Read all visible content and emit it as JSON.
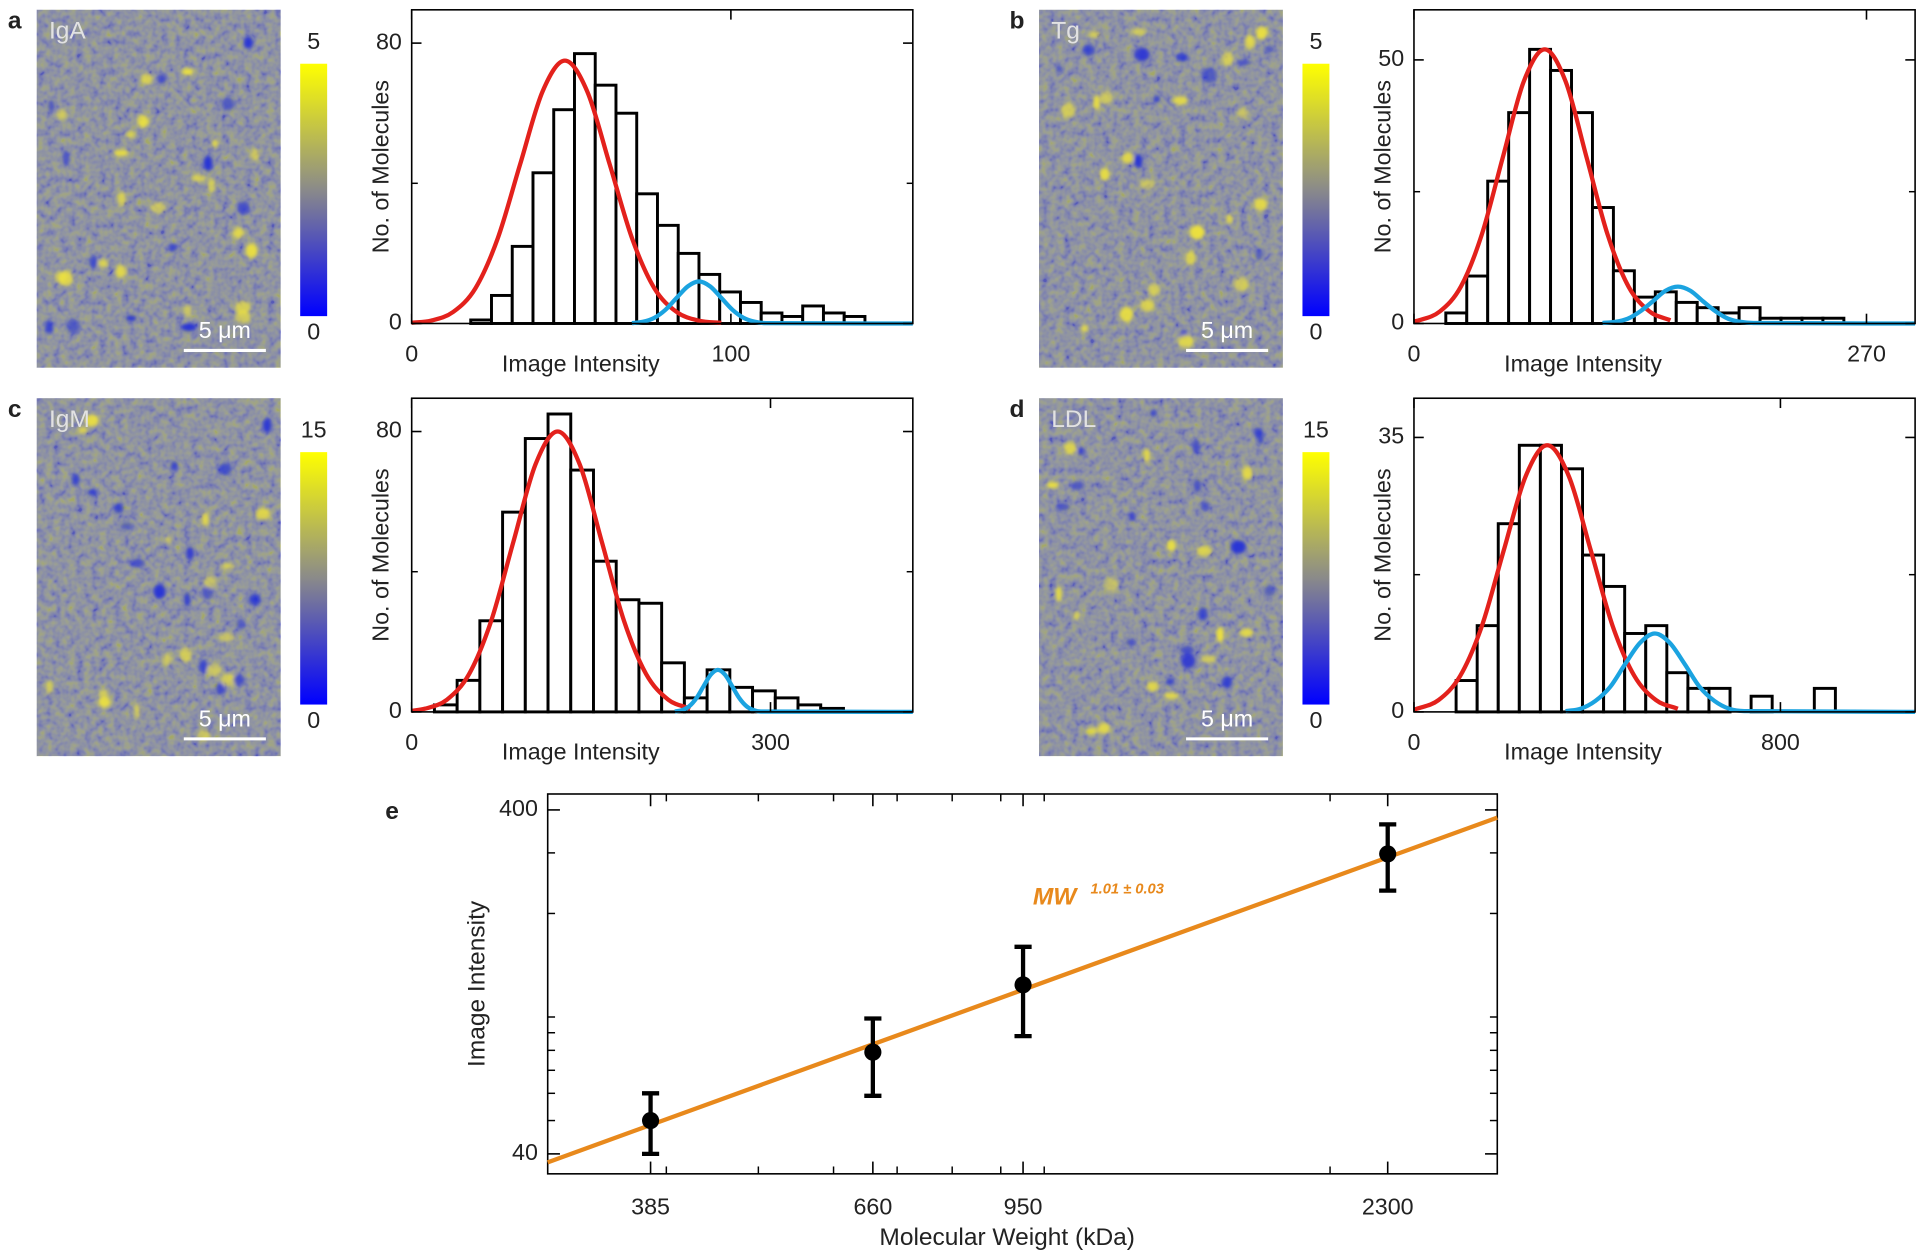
{
  "chart_data": [
    {
      "type": "histogram",
      "panel": "a",
      "image_label": "IgA",
      "scale_bar": "5 μm",
      "colorbar_ticks": [
        0,
        5
      ],
      "xlabel": "Image Intensity",
      "ylabel": "No. of Molecules",
      "bins": [
        18.5,
        25,
        31.5,
        38,
        44.5,
        51,
        57.5,
        64,
        70.5,
        77,
        83.5,
        90,
        96.5,
        103,
        109.5,
        116,
        122.5,
        129,
        135.5,
        142
      ],
      "counts": [
        1,
        8,
        22,
        43,
        61,
        77,
        68,
        60,
        37,
        28,
        20,
        14,
        9,
        6,
        3,
        2,
        5,
        3,
        2
      ],
      "color": "#000000",
      "series": [
        {
          "color": "#e3211c",
          "x": [
            0,
            6,
            13,
            20,
            27,
            34,
            41,
            48,
            55,
            62,
            69,
            76,
            83,
            90,
            97
          ],
          "values": [
            0.2,
            0.8,
            3.3,
            10.1,
            24.4,
            45.5,
            66.2,
            75,
            66.2,
            45.5,
            24.4,
            10.1,
            3.3,
            0.8,
            0.2
          ]
        },
        {
          "color": "#1ba3e0",
          "x": [
            69,
            72.5,
            76,
            79.5,
            83,
            86.5,
            90,
            93.5,
            97,
            100.5,
            104,
            107.5,
            111,
            157
          ],
          "values": [
            0.1,
            0.5,
            1.6,
            3.9,
            7.3,
            10.6,
            12,
            10.6,
            7.3,
            3.9,
            1.6,
            0.5,
            0.1,
            0
          ]
        }
      ],
      "xlim": [
        0,
        157
      ],
      "ylim": [
        0,
        89.5
      ],
      "xticks": [
        0,
        100
      ],
      "yticks": [
        0,
        80
      ],
      "yminor": [
        40
      ]
    },
    {
      "type": "histogram",
      "panel": "b",
      "image_label": "Tg",
      "scale_bar": "5 μm",
      "colorbar_ticks": [
        0,
        5
      ],
      "xlabel": "Image Intensity",
      "ylabel": "No. of Molecules",
      "bins": [
        19,
        31.5,
        44,
        56.5,
        69,
        81.5,
        94,
        106.5,
        119,
        131.5,
        144,
        156.5,
        169,
        181.5,
        194,
        206.5,
        219,
        231.5,
        244,
        256.5
      ],
      "counts": [
        2,
        9,
        27,
        40,
        52,
        48,
        40,
        22,
        10,
        5,
        6,
        4,
        3,
        2,
        3,
        1,
        1,
        1,
        1
      ],
      "color": "#000000",
      "series": [
        {
          "color": "#e3211c",
          "x": [
            0,
            3,
            15.5,
            28,
            40.5,
            53,
            65.5,
            78,
            90.5,
            103,
            115.5,
            128,
            140.5,
            153
          ],
          "values": [
            0.4,
            0.6,
            2.3,
            7.0,
            16.9,
            31.5,
            45.9,
            52,
            45.9,
            31.5,
            16.9,
            7.0,
            2.3,
            0.6
          ]
        },
        {
          "color": "#1ba3e0",
          "x": [
            112.5,
            120,
            127.5,
            135,
            142.5,
            150,
            157.5,
            165,
            172.5,
            180,
            187.5,
            195,
            202.5,
            299
          ],
          "values": [
            0.1,
            0.3,
            0.9,
            2.3,
            4.2,
            6.2,
            7,
            6.2,
            4.2,
            2.3,
            0.9,
            0.3,
            0.1,
            0
          ]
        }
      ],
      "xlim": [
        0,
        299
      ],
      "ylim": [
        0,
        59.5
      ],
      "xticks": [
        0,
        270
      ],
      "yticks": [
        0,
        50
      ],
      "yminor": [
        25
      ]
    },
    {
      "type": "histogram",
      "panel": "c",
      "image_label": "IgM",
      "scale_bar": "5 μm",
      "colorbar_ticks": [
        0,
        15
      ],
      "xlabel": "Image Intensity",
      "ylabel": "No. of Molecules",
      "bins": [
        19,
        38,
        57,
        76,
        95,
        114,
        133,
        152,
        171,
        190,
        209,
        228,
        247,
        266,
        285,
        304,
        323,
        342,
        361
      ],
      "counts": [
        2,
        9,
        26,
        57,
        78,
        85,
        69,
        43,
        32,
        31,
        14,
        4,
        12,
        7,
        6,
        4,
        2,
        1
      ],
      "color": "#000000",
      "series": [
        {
          "color": "#e3211c",
          "x": [
            0,
            11,
            29.5,
            48,
            66.5,
            85,
            103.5,
            122,
            140.5,
            159,
            177.5,
            196,
            214.5,
            233
          ],
          "values": [
            0.3,
            0.9,
            3.5,
            10.8,
            26.0,
            48.5,
            70.6,
            80,
            70.6,
            48.5,
            26.0,
            10.8,
            3.5,
            0.9
          ]
        },
        {
          "color": "#1ba3e0",
          "x": [
            220,
            226,
            232,
            238,
            244,
            250,
            256,
            262,
            268,
            274,
            280,
            286,
            292,
            419
          ],
          "values": [
            0.1,
            0.5,
            1.6,
            3.9,
            7.3,
            10.6,
            12,
            10.6,
            7.3,
            3.9,
            1.6,
            0.5,
            0.1,
            0
          ]
        }
      ],
      "xlim": [
        0,
        419
      ],
      "ylim": [
        0,
        89.5
      ],
      "xticks": [
        0,
        300
      ],
      "yticks": [
        0,
        80
      ],
      "yminor": [
        40
      ]
    },
    {
      "type": "histogram",
      "panel": "d",
      "image_label": "LDL",
      "scale_bar": "5 μm",
      "colorbar_ticks": [
        0,
        15
      ],
      "xlabel": "Image Intensity",
      "ylabel": "No. of Molecules",
      "bins": [
        92,
        138,
        184,
        230,
        276,
        322,
        368,
        414,
        460,
        506,
        552,
        598,
        644,
        690,
        736,
        782,
        828,
        874,
        920
      ],
      "counts": [
        4,
        11,
        24,
        34,
        34,
        31,
        20,
        16,
        10,
        11,
        5,
        3,
        3,
        0,
        2,
        0,
        0,
        3
      ],
      "color": "#000000",
      "series": [
        {
          "color": "#e3211c",
          "x": [
            0,
            6,
            53.5,
            101,
            148.5,
            196,
            243.5,
            291,
            338.5,
            386,
            433.5,
            481,
            528.5,
            576
          ],
          "values": [
            0.3,
            0.4,
            1.5,
            4.6,
            11.0,
            20.6,
            30.0,
            34,
            30.0,
            20.6,
            11.0,
            4.6,
            1.5,
            0.4
          ]
        },
        {
          "color": "#1ba3e0",
          "x": [
            331,
            363.5,
            396,
            428.5,
            461,
            493.5,
            526,
            558.5,
            591,
            623.5,
            656,
            688.5,
            721,
            1094
          ],
          "values": [
            0.1,
            0.4,
            1.4,
            3.2,
            6.1,
            8.8,
            10,
            8.8,
            6.1,
            3.2,
            1.4,
            0.4,
            0.1,
            0
          ]
        }
      ],
      "xlim": [
        0,
        1094
      ],
      "ylim": [
        0,
        40
      ],
      "xticks": [
        0,
        800
      ],
      "yticks": [
        0,
        35
      ],
      "yminor": [
        17.5
      ]
    },
    {
      "type": "scatter",
      "panel": "e",
      "xlabel": "Molecular Weight (kDa)",
      "ylabel": "Image Intensity",
      "x": [
        385,
        660,
        950,
        2300
      ],
      "values": [
        50,
        79,
        124,
        298
      ],
      "errors": [
        10,
        20,
        36,
        65
      ],
      "color": "#000000",
      "fit": {
        "color": "#e8891c",
        "x": [
          300,
          3000
        ],
        "values": [
          37.8,
          380
        ]
      },
      "annotation": "MW",
      "annotation_exponent": "1.01 ± 0.03",
      "xscale": "log",
      "yscale": "log",
      "xlim": [
        300,
        3000
      ],
      "ylim": [
        35,
        445
      ],
      "xticks": [
        385,
        660,
        950,
        2300
      ],
      "yticks": [
        40,
        400
      ],
      "xminor": [
        400,
        500,
        600,
        700,
        800,
        900,
        1000,
        2000,
        3000
      ],
      "yminor": [
        50,
        60,
        70,
        80,
        90,
        100,
        200,
        300
      ]
    }
  ]
}
